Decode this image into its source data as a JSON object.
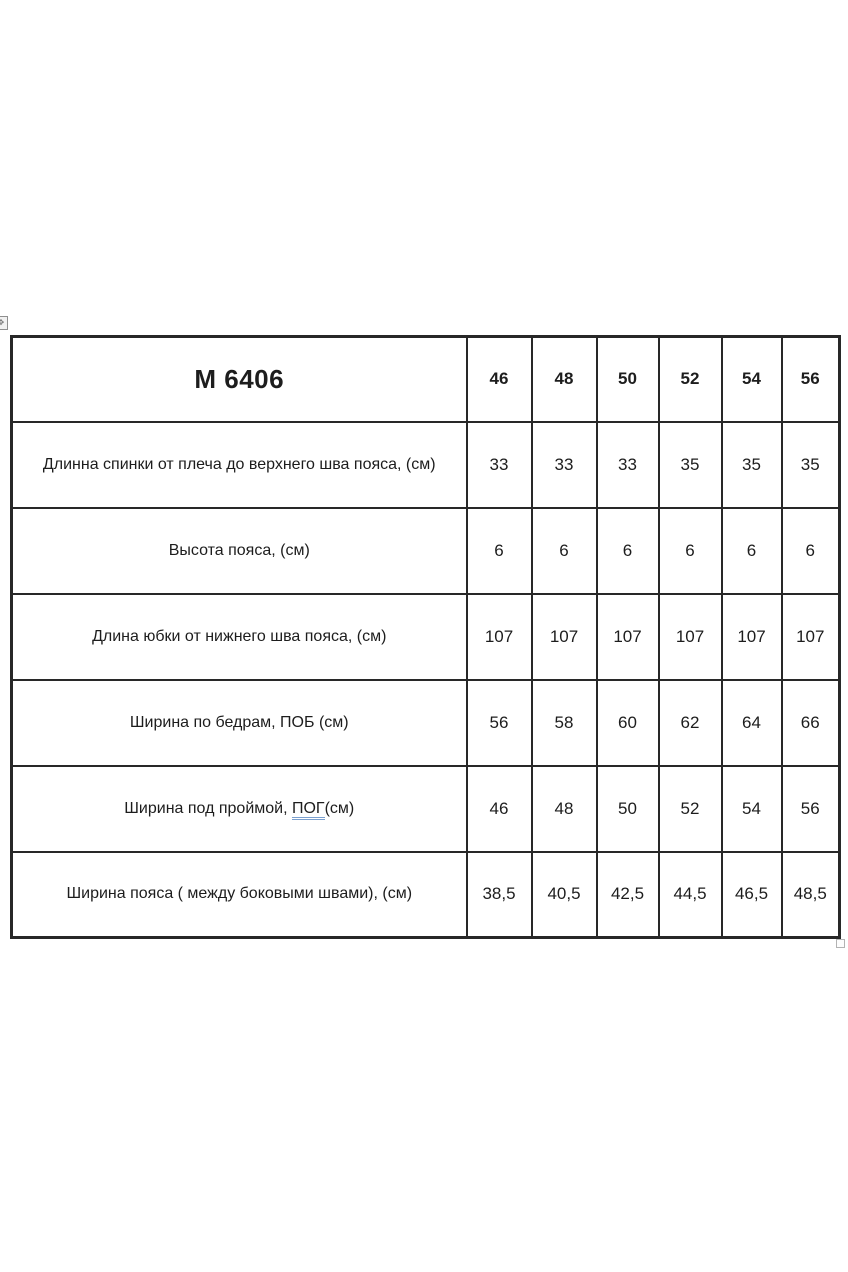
{
  "page": {
    "background_color": "#ffffff",
    "text_color": "#1d1d1d",
    "border_color": "#282828",
    "grammar_underline_color": "#7ba0cf"
  },
  "icons": {
    "move_handle": "table-move-handle-icon",
    "resize_handle": "table-resize-handle-icon"
  },
  "table": {
    "model": "М 6406",
    "sizes": [
      "46",
      "48",
      "50",
      "52",
      "54",
      "56"
    ],
    "rows": [
      {
        "label_segments": [
          {
            "text": "Длинна спинки от плеча до верхнего шва пояса, (см)"
          }
        ],
        "values": [
          "33",
          "33",
          "33",
          "35",
          "35",
          "35"
        ]
      },
      {
        "label_segments": [
          {
            "text": "Высота пояса, (см)"
          }
        ],
        "values": [
          "6",
          "6",
          "6",
          "6",
          "6",
          "6"
        ]
      },
      {
        "label_segments": [
          {
            "text": "Длина юбки от нижнего шва пояса, (см)"
          }
        ],
        "values": [
          "107",
          "107",
          "107",
          "107",
          "107",
          "107"
        ]
      },
      {
        "label_segments": [
          {
            "text": "Ширина по бедрам, ПОБ (см)"
          }
        ],
        "values": [
          "56",
          "58",
          "60",
          "62",
          "64",
          "66"
        ]
      },
      {
        "label_segments": [
          {
            "text": "Ширина под проймой, "
          },
          {
            "text": "ПОГ",
            "underline": true
          },
          {
            "text": "(см)"
          }
        ],
        "values": [
          "46",
          "48",
          "50",
          "52",
          "54",
          "56"
        ]
      },
      {
        "label_segments": [
          {
            "text": "Ширина пояса ( между боковыми швами), (см)"
          }
        ],
        "values": [
          "38,5",
          "40,5",
          "42,5",
          "44,5",
          "46,5",
          "48,5"
        ]
      }
    ]
  }
}
